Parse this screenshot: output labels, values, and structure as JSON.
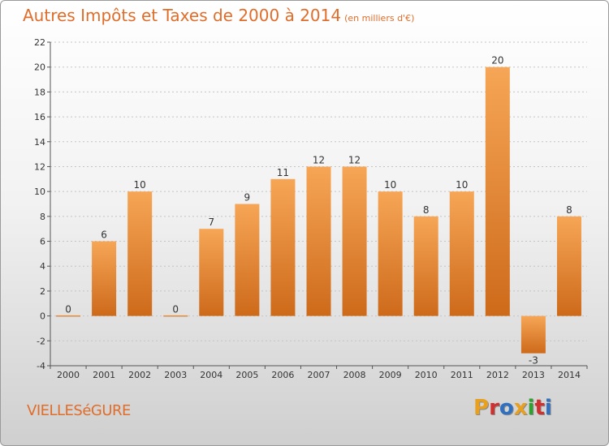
{
  "header": {
    "title": "Autres Impôts et Taxes de 2000 à 2014",
    "unit": "(en milliers d'€)"
  },
  "footer": {
    "place": "VIELLESéGURE",
    "logo": "Proxiti",
    "logo_colors": [
      "#e8a020",
      "#d03030",
      "#3070c0",
      "#e8a020",
      "#30a030",
      "#d03030",
      "#3070c0"
    ]
  },
  "colors": {
    "bar_top": "#f6a656",
    "bar_bottom": "#cd6a1a",
    "text": "#333333",
    "title": "#e06d2a"
  },
  "chart_data": {
    "type": "bar",
    "title": "Autres Impôts et Taxes de 2000 à 2014",
    "subtitle": "(en milliers d'€)",
    "xlabel": "",
    "ylabel": "",
    "categories": [
      "2000",
      "2001",
      "2002",
      "2003",
      "2004",
      "2005",
      "2006",
      "2007",
      "2008",
      "2009",
      "2010",
      "2011",
      "2012",
      "2013",
      "2014"
    ],
    "values": [
      0,
      6,
      10,
      0,
      7,
      9,
      11,
      12,
      12,
      10,
      8,
      10,
      20,
      -3,
      8
    ],
    "data_labels": [
      "0",
      "6",
      "10",
      "0",
      "7",
      "9",
      "11",
      "12",
      "12",
      "10",
      "8",
      "10",
      "20",
      "-3",
      "8"
    ],
    "yticks": [
      -4,
      -2,
      0,
      2,
      4,
      6,
      8,
      10,
      12,
      14,
      16,
      18,
      20,
      22
    ],
    "ylim": [
      -4,
      22
    ],
    "grid": "horizontal-dashed",
    "legend": "none"
  }
}
